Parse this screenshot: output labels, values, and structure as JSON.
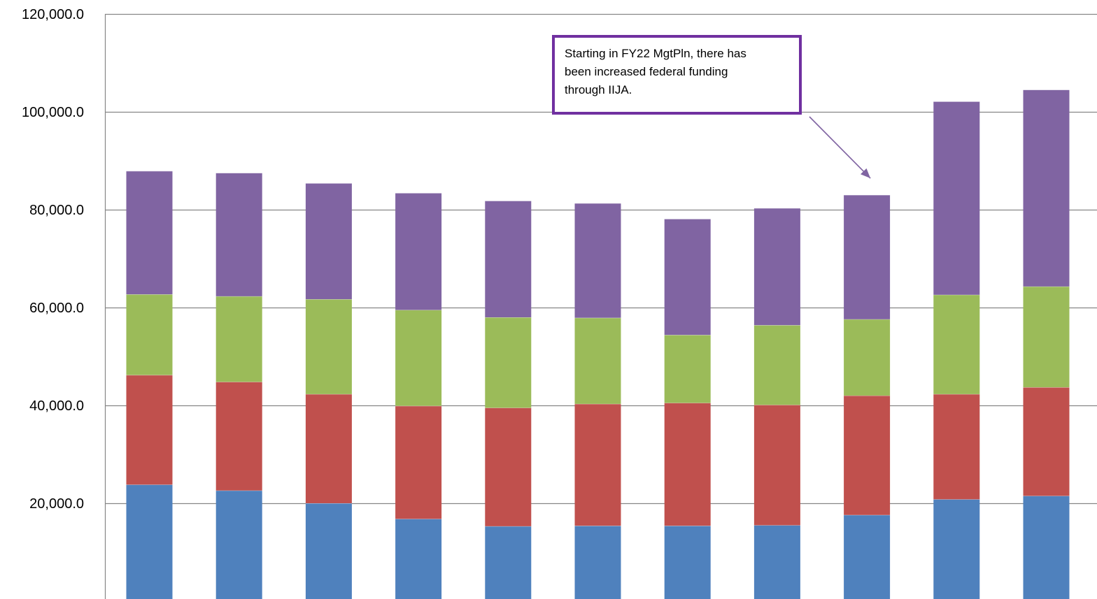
{
  "chart_data": {
    "type": "bar",
    "stacked": true,
    "categories": [
      "",
      "",
      "",
      "",
      "",
      "",
      "",
      "",
      "",
      "",
      ""
    ],
    "series": [
      {
        "color": "#4F81BD",
        "values": [
          23800,
          22600,
          20000,
          16800,
          15300,
          15400,
          15400,
          15500,
          17600,
          20800,
          21500
        ]
      },
      {
        "color": "#C0504D",
        "values": [
          22400,
          22200,
          22300,
          23100,
          24200,
          24900,
          25100,
          24600,
          24400,
          21500,
          22200
        ]
      },
      {
        "color": "#9BBB59",
        "values": [
          16500,
          17500,
          19400,
          19600,
          18500,
          17600,
          13900,
          16300,
          15600,
          20300,
          20600
        ]
      },
      {
        "color": "#8064A2",
        "values": [
          25200,
          25200,
          23700,
          23900,
          23800,
          23400,
          23700,
          23900,
          25400,
          39500,
          40200
        ]
      }
    ],
    "yaxis": {
      "ylim": [
        0,
        120000
      ],
      "tick_labels": [
        "20,000.0",
        "40,000.0",
        "60,000.0",
        "80,000.0",
        "100,000.0",
        "120,000.0"
      ],
      "tick_values": [
        20000,
        40000,
        60000,
        80000,
        100000,
        120000
      ]
    },
    "grid": true,
    "legend": "none",
    "annotation": {
      "text": "Starting in FY22 MgtPln, there has been increased federal funding through IIJA.",
      "border_color": "#7030A0",
      "points_to_category_index": 8,
      "arrow_color": "#8064A2"
    }
  }
}
